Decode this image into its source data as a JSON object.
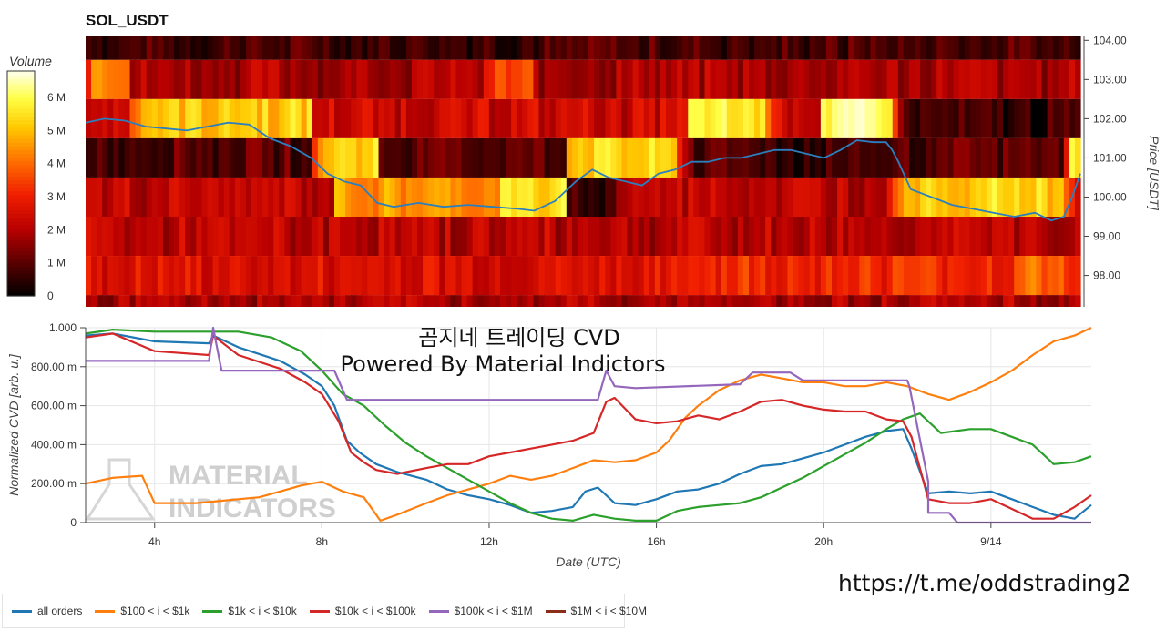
{
  "title": "SOL_USDT",
  "colorbar": {
    "title": "Volume",
    "ticks": [
      {
        "v": 0,
        "label": "0"
      },
      {
        "v": 1,
        "label": "1 M"
      },
      {
        "v": 2,
        "label": "2 M"
      },
      {
        "v": 3,
        "label": "3 M"
      },
      {
        "v": 4,
        "label": "4 M"
      },
      {
        "v": 5,
        "label": "5 M"
      },
      {
        "v": 6,
        "label": "6 M"
      }
    ],
    "range": [
      0,
      6.8
    ]
  },
  "overlay_text": {
    "line1": "곰지네 트레이딩 CVD",
    "line2": "Powered By Material Indictors"
  },
  "watermark": {
    "line1": "MATERIAL",
    "line2": "INDICATORS"
  },
  "url": "https://t.me/oddstrading2",
  "chart_data": [
    {
      "type": "heatmap",
      "title": "SOL_USDT",
      "ylabel": "Price [USDT]",
      "yaxis_side": "right",
      "ylim": [
        97.2,
        104.1
      ],
      "x_range_hours": [
        2.35,
        26.4
      ],
      "price_ticks": [
        "98.00",
        "99.00",
        "100.00",
        "101.00",
        "102.00",
        "103.00",
        "104.00"
      ],
      "bands": [
        {
          "lo": 103.5,
          "hi": 104.1,
          "base": 0.8
        },
        {
          "lo": 102.5,
          "hi": 103.5,
          "base": 1.9
        },
        {
          "lo": 101.5,
          "hi": 102.5,
          "base": 2.4
        },
        {
          "lo": 100.5,
          "hi": 101.5,
          "base": 1.0
        },
        {
          "lo": 99.5,
          "hi": 100.5,
          "base": 2.2
        },
        {
          "lo": 98.5,
          "hi": 99.5,
          "base": 2.1
        },
        {
          "lo": 97.5,
          "hi": 98.5,
          "base": 2.6
        },
        {
          "lo": 97.2,
          "hi": 97.5,
          "base": 1.9
        }
      ],
      "hot_zones": [
        {
          "band": 1,
          "from": 2.35,
          "to": 3.4,
          "val": 4.6
        },
        {
          "band": 1,
          "from": 12.0,
          "to": 13.2,
          "val": 3.4
        },
        {
          "band": 2,
          "from": 3.4,
          "to": 7.8,
          "val": 5.2
        },
        {
          "band": 2,
          "from": 16.9,
          "to": 18.8,
          "val": 5.6
        },
        {
          "band": 2,
          "from": 20.1,
          "to": 21.8,
          "val": 6.1
        },
        {
          "band": 2,
          "from": 21.8,
          "to": 26.4,
          "val": 0.6
        },
        {
          "band": 3,
          "from": 7.8,
          "to": 9.4,
          "val": 5.4
        },
        {
          "band": 3,
          "from": 14.0,
          "to": 16.6,
          "val": 5.2
        },
        {
          "band": 3,
          "from": 26.0,
          "to": 26.4,
          "val": 5.5
        },
        {
          "band": 3,
          "from": 18.8,
          "to": 21.6,
          "val": 0.7
        },
        {
          "band": 4,
          "from": 8.4,
          "to": 12.4,
          "val": 4.5
        },
        {
          "band": 4,
          "from": 12.4,
          "to": 14.0,
          "val": 5.4
        },
        {
          "band": 4,
          "from": 14.0,
          "to": 15.2,
          "val": 0.5
        },
        {
          "band": 4,
          "from": 21.9,
          "to": 26.0,
          "val": 5.3
        },
        {
          "band": 6,
          "from": 16.8,
          "to": 24.9,
          "val": 3.2
        },
        {
          "band": 6,
          "from": 24.9,
          "to": 26.0,
          "val": 4.0
        }
      ],
      "price_series": {
        "x": [
          2.35,
          2.8,
          3.3,
          3.8,
          4.3,
          4.8,
          5.3,
          5.8,
          6.3,
          6.8,
          7.3,
          7.8,
          8.2,
          8.6,
          9.0,
          9.4,
          9.8,
          10.4,
          11.0,
          11.6,
          12.2,
          12.8,
          13.2,
          13.7,
          14.2,
          14.6,
          15.0,
          15.4,
          15.8,
          16.2,
          16.6,
          17.0,
          17.4,
          17.8,
          18.2,
          18.6,
          19.0,
          19.4,
          19.8,
          20.2,
          20.6,
          21.0,
          21.4,
          21.7,
          21.85,
          22.0,
          22.3,
          22.8,
          23.3,
          23.8,
          24.3,
          24.8,
          25.3,
          25.7,
          26.0,
          26.2,
          26.4
        ],
        "y": [
          101.9,
          102.0,
          101.95,
          101.8,
          101.75,
          101.7,
          101.8,
          101.9,
          101.85,
          101.5,
          101.3,
          101.0,
          100.6,
          100.4,
          100.3,
          99.85,
          99.75,
          99.85,
          99.75,
          99.8,
          99.75,
          99.7,
          99.65,
          99.9,
          100.4,
          100.7,
          100.5,
          100.4,
          100.3,
          100.6,
          100.7,
          100.9,
          100.9,
          101.0,
          101.0,
          101.1,
          101.2,
          101.2,
          101.1,
          101.0,
          101.2,
          101.45,
          101.4,
          101.4,
          101.2,
          100.9,
          100.2,
          100.0,
          99.8,
          99.7,
          99.6,
          99.5,
          99.6,
          99.4,
          99.5,
          100.0,
          100.6
        ]
      }
    },
    {
      "type": "line",
      "xlabel": "Date (UTC)",
      "ylabel": "Normalized CVD [arb. u.]",
      "ylim": [
        0,
        1.0
      ],
      "y_ticks": [
        "0",
        "200.00 m",
        "400.00 m",
        "600.00 m",
        "800.00 m",
        "1.000"
      ],
      "x_ticks": [
        "4h",
        "8h",
        "12h",
        "16h",
        "20h",
        "9/14"
      ],
      "x_tick_hours": [
        4,
        8,
        12,
        16,
        20,
        24
      ],
      "x_range_hours": [
        2.35,
        26.4
      ],
      "series": [
        {
          "name": "all orders",
          "color": "#1f77b4",
          "x": [
            2.35,
            3.0,
            4.0,
            5.3,
            5.4,
            6.0,
            7.0,
            7.6,
            8.0,
            8.3,
            8.6,
            8.9,
            9.3,
            9.8,
            10.5,
            11.0,
            11.5,
            12.0,
            12.5,
            13.0,
            13.5,
            14.0,
            14.3,
            14.6,
            15.0,
            15.5,
            16.0,
            16.5,
            17.0,
            17.5,
            18.0,
            18.5,
            19.0,
            19.5,
            20.0,
            20.5,
            21.0,
            21.5,
            21.9,
            22.1,
            22.5,
            23.0,
            23.5,
            24.0,
            24.5,
            25.0,
            25.5,
            26.0,
            26.4
          ],
          "y": [
            0.96,
            0.97,
            0.93,
            0.92,
            0.96,
            0.9,
            0.83,
            0.76,
            0.7,
            0.6,
            0.42,
            0.36,
            0.3,
            0.26,
            0.22,
            0.17,
            0.14,
            0.12,
            0.09,
            0.05,
            0.06,
            0.08,
            0.16,
            0.18,
            0.1,
            0.09,
            0.12,
            0.16,
            0.17,
            0.2,
            0.25,
            0.29,
            0.3,
            0.33,
            0.36,
            0.4,
            0.44,
            0.47,
            0.48,
            0.38,
            0.15,
            0.16,
            0.15,
            0.16,
            0.12,
            0.08,
            0.04,
            0.02,
            0.09
          ]
        },
        {
          "name": "$100 < i < $1k",
          "color": "#ff7f0e",
          "x": [
            2.35,
            3.0,
            3.7,
            4.0,
            4.5,
            5.0,
            5.5,
            6.0,
            6.5,
            7.0,
            7.5,
            8.0,
            8.5,
            9.0,
            9.4,
            9.8,
            10.5,
            11.0,
            11.5,
            12.0,
            12.5,
            13.0,
            13.5,
            14.0,
            14.5,
            15.0,
            15.5,
            16.0,
            16.3,
            16.7,
            17.0,
            17.5,
            18.0,
            18.5,
            19.0,
            19.5,
            20.0,
            20.5,
            21.0,
            21.5,
            22.0,
            22.5,
            23.0,
            23.5,
            24.0,
            24.5,
            25.0,
            25.5,
            26.0,
            26.4
          ],
          "y": [
            0.2,
            0.23,
            0.24,
            0.1,
            0.1,
            0.1,
            0.11,
            0.12,
            0.13,
            0.16,
            0.19,
            0.21,
            0.16,
            0.13,
            0.01,
            0.04,
            0.1,
            0.14,
            0.17,
            0.2,
            0.24,
            0.22,
            0.24,
            0.28,
            0.32,
            0.31,
            0.32,
            0.36,
            0.42,
            0.54,
            0.6,
            0.68,
            0.73,
            0.76,
            0.74,
            0.72,
            0.72,
            0.7,
            0.7,
            0.72,
            0.7,
            0.66,
            0.63,
            0.67,
            0.72,
            0.78,
            0.86,
            0.93,
            0.96,
            1.0
          ]
        },
        {
          "name": "$1k < i < $10k",
          "color": "#2ca02c",
          "x": [
            2.35,
            3.0,
            4.0,
            5.0,
            6.0,
            6.8,
            7.5,
            8.0,
            8.5,
            9.0,
            9.5,
            10.0,
            10.5,
            11.0,
            11.5,
            12.0,
            12.5,
            13.0,
            13.5,
            14.0,
            14.5,
            15.0,
            15.5,
            16.0,
            16.5,
            17.0,
            17.5,
            18.0,
            18.5,
            19.0,
            19.5,
            20.0,
            20.5,
            21.0,
            21.5,
            21.9,
            22.3,
            22.8,
            23.5,
            24.0,
            24.5,
            25.0,
            25.5,
            26.0,
            26.4
          ],
          "y": [
            0.97,
            0.99,
            0.98,
            0.98,
            0.98,
            0.95,
            0.88,
            0.78,
            0.66,
            0.6,
            0.5,
            0.41,
            0.34,
            0.28,
            0.22,
            0.16,
            0.1,
            0.05,
            0.02,
            0.01,
            0.04,
            0.02,
            0.01,
            0.01,
            0.06,
            0.08,
            0.09,
            0.1,
            0.13,
            0.18,
            0.23,
            0.29,
            0.35,
            0.41,
            0.48,
            0.53,
            0.56,
            0.46,
            0.48,
            0.48,
            0.44,
            0.4,
            0.3,
            0.31,
            0.34
          ]
        },
        {
          "name": "$10k < i < $100k",
          "color": "#d62728",
          "x": [
            2.35,
            3.0,
            4.0,
            5.3,
            5.4,
            6.0,
            7.0,
            7.6,
            8.0,
            8.4,
            8.7,
            9.0,
            9.3,
            9.8,
            10.5,
            11.0,
            11.5,
            12.0,
            12.5,
            13.0,
            13.5,
            14.0,
            14.5,
            14.8,
            15.0,
            15.5,
            16.0,
            16.5,
            17.0,
            17.5,
            18.0,
            18.5,
            19.0,
            19.5,
            20.0,
            20.5,
            21.0,
            21.5,
            21.9,
            22.1,
            22.5,
            23.0,
            23.5,
            24.0,
            24.5,
            25.0,
            25.5,
            26.0,
            26.4
          ],
          "y": [
            0.95,
            0.97,
            0.88,
            0.86,
            0.96,
            0.86,
            0.79,
            0.72,
            0.66,
            0.52,
            0.36,
            0.31,
            0.27,
            0.25,
            0.28,
            0.3,
            0.3,
            0.34,
            0.36,
            0.38,
            0.4,
            0.42,
            0.46,
            0.62,
            0.64,
            0.53,
            0.51,
            0.52,
            0.55,
            0.53,
            0.57,
            0.62,
            0.63,
            0.6,
            0.58,
            0.57,
            0.57,
            0.53,
            0.52,
            0.44,
            0.12,
            0.1,
            0.1,
            0.12,
            0.07,
            0.02,
            0.02,
            0.08,
            0.14
          ]
        },
        {
          "name": "$100k < i < $1M",
          "color": "#9467bd",
          "x": [
            2.35,
            5.3,
            5.4,
            5.6,
            8.3,
            8.6,
            12.0,
            14.6,
            14.8,
            15.0,
            15.5,
            18.0,
            18.3,
            19.2,
            19.5,
            22.0,
            22.05,
            22.5,
            22.5,
            23.0,
            23.2,
            26.4
          ],
          "y": [
            0.83,
            0.83,
            1.0,
            0.78,
            0.78,
            0.63,
            0.63,
            0.63,
            0.78,
            0.7,
            0.69,
            0.71,
            0.77,
            0.77,
            0.73,
            0.73,
            0.7,
            0.21,
            0.05,
            0.05,
            0.0,
            0.0
          ]
        },
        {
          "name": "$1M < i < $10M",
          "color": "#8c2d19",
          "x": [],
          "y": []
        }
      ]
    }
  ]
}
